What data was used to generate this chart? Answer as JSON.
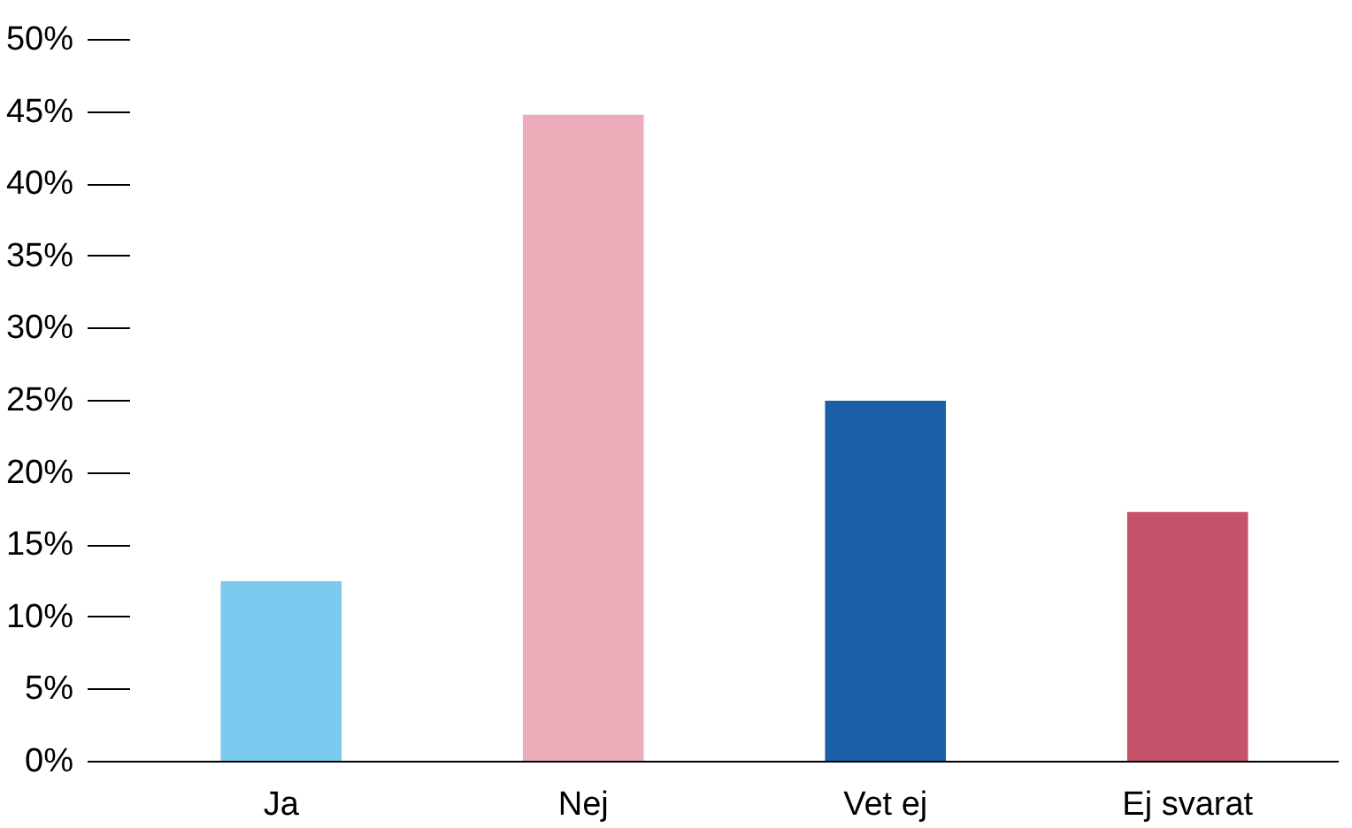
{
  "chart_data": {
    "type": "bar",
    "categories": [
      "Ja",
      "Nej",
      "Vet ej",
      "Ej svarat"
    ],
    "values": [
      12.5,
      44.8,
      25,
      17.3
    ],
    "colors": [
      "#7ccaf0",
      "#edacb9",
      "#1b5fa9",
      "#c5546b"
    ],
    "ylim": [
      0,
      50
    ],
    "yticks": [
      {
        "value": 0,
        "label": "0%"
      },
      {
        "value": 5,
        "label": "5%"
      },
      {
        "value": 10,
        "label": "10%"
      },
      {
        "value": 15,
        "label": "15%"
      },
      {
        "value": 20,
        "label": "20%"
      },
      {
        "value": 25,
        "label": "25%"
      },
      {
        "value": 30,
        "label": "30%"
      },
      {
        "value": 35,
        "label": "35%"
      },
      {
        "value": 40,
        "label": "40%"
      },
      {
        "value": 45,
        "label": "45%"
      },
      {
        "value": 50,
        "label": "50%"
      }
    ],
    "grid": false
  }
}
